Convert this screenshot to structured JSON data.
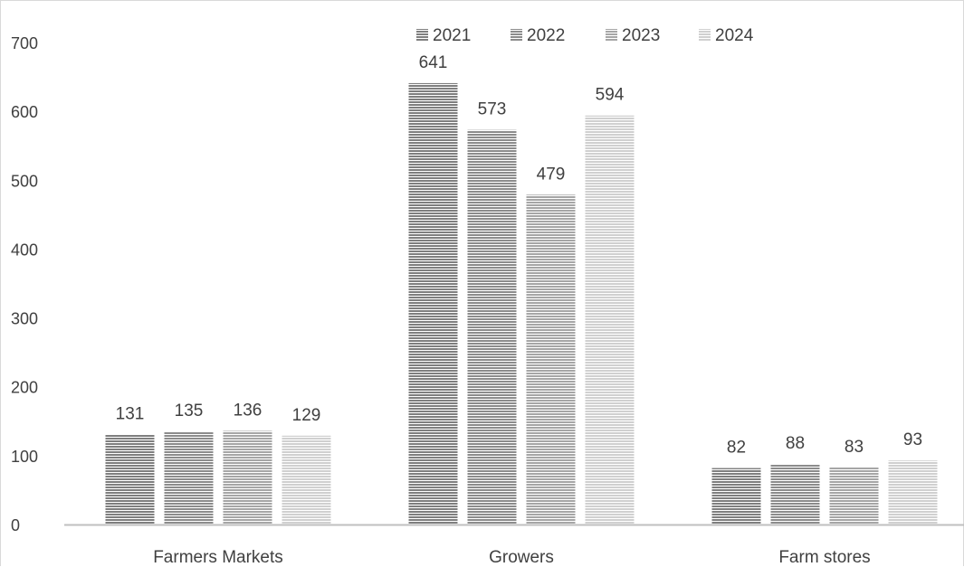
{
  "chart_data": {
    "type": "bar",
    "categories": [
      "Farmers Markets",
      "Growers",
      "Farm stores"
    ],
    "series": [
      {
        "name": "2021",
        "values": [
          131,
          641,
          82
        ],
        "color": "#7f7f7f"
      },
      {
        "name": "2022",
        "values": [
          135,
          573,
          88
        ],
        "color": "#8c8c8c"
      },
      {
        "name": "2023",
        "values": [
          136,
          479,
          83
        ],
        "color": "#a6a6a6"
      },
      {
        "name": "2024",
        "values": [
          129,
          594,
          93
        ],
        "color": "#d0d0d0"
      }
    ],
    "title": "",
    "xlabel": "",
    "ylabel": "",
    "ylim": [
      0,
      700
    ],
    "yticks": [
      0,
      100,
      200,
      300,
      400,
      500,
      600,
      700
    ],
    "grid": false,
    "legend": "top-center",
    "data_labels": true,
    "bar_texture": "horizontal-stripes"
  }
}
